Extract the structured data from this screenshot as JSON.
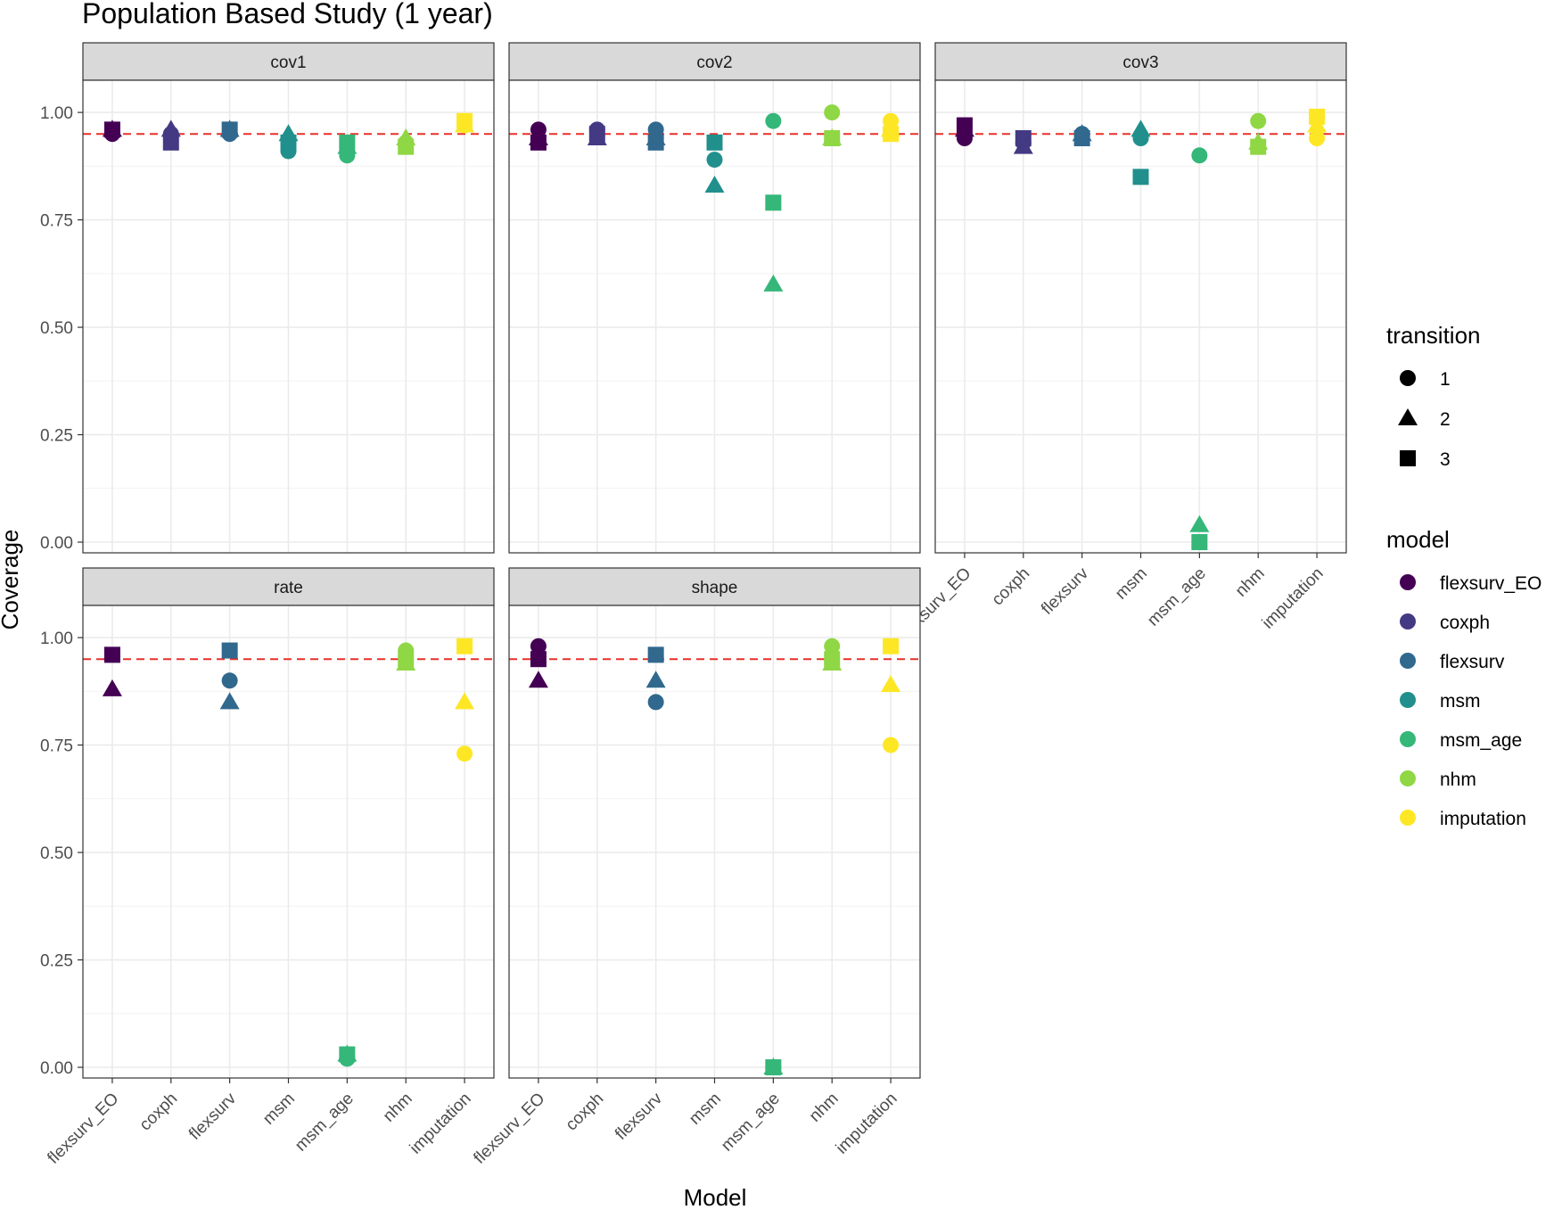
{
  "chart_data": {
    "type": "scatter",
    "title": "Population Based Study (1 year)",
    "xlabel": "Model",
    "ylabel": "Coverage",
    "ylim": [
      0,
      1.05
    ],
    "yticks": [
      "0.00",
      "0.25",
      "0.50",
      "0.75",
      "1.00"
    ],
    "reference_line": 0.95,
    "grid": true,
    "legend_placement": "right",
    "categories": [
      "flexsurv_EO",
      "coxph",
      "flexsurv",
      "msm",
      "msm_age",
      "nhm",
      "imputation"
    ],
    "transition_legend": {
      "title": "transition",
      "entries": [
        {
          "label": "1",
          "shape": "circle"
        },
        {
          "label": "2",
          "shape": "triangle"
        },
        {
          "label": "3",
          "shape": "square"
        }
      ]
    },
    "model_legend": {
      "title": "model",
      "entries": [
        {
          "label": "flexsurv_EO",
          "color": "#440154"
        },
        {
          "label": "coxph",
          "color": "#443A83"
        },
        {
          "label": "flexsurv",
          "color": "#31688E"
        },
        {
          "label": "msm",
          "color": "#21908C"
        },
        {
          "label": "msm_age",
          "color": "#35B779"
        },
        {
          "label": "nhm",
          "color": "#8FD744"
        },
        {
          "label": "imputation",
          "color": "#FDE725"
        }
      ]
    },
    "panels": [
      {
        "label": "cov1",
        "points": [
          {
            "model": "flexsurv_EO",
            "transition": "1",
            "y": 0.95
          },
          {
            "model": "flexsurv_EO",
            "transition": "2",
            "y": 0.96
          },
          {
            "model": "flexsurv_EO",
            "transition": "3",
            "y": 0.96
          },
          {
            "model": "coxph",
            "transition": "1",
            "y": 0.95
          },
          {
            "model": "coxph",
            "transition": "2",
            "y": 0.96
          },
          {
            "model": "coxph",
            "transition": "3",
            "y": 0.93
          },
          {
            "model": "flexsurv",
            "transition": "1",
            "y": 0.95
          },
          {
            "model": "flexsurv",
            "transition": "2",
            "y": 0.96
          },
          {
            "model": "flexsurv",
            "transition": "3",
            "y": 0.96
          },
          {
            "model": "msm",
            "transition": "1",
            "y": 0.91
          },
          {
            "model": "msm",
            "transition": "2",
            "y": 0.95
          },
          {
            "model": "msm",
            "transition": "3",
            "y": 0.93
          },
          {
            "model": "msm_age",
            "transition": "1",
            "y": 0.9
          },
          {
            "model": "msm_age",
            "transition": "2",
            "y": 0.92
          },
          {
            "model": "msm_age",
            "transition": "3",
            "y": 0.93
          },
          {
            "model": "nhm",
            "transition": "1",
            "y": 0.93
          },
          {
            "model": "nhm",
            "transition": "2",
            "y": 0.94
          },
          {
            "model": "nhm",
            "transition": "3",
            "y": 0.92
          },
          {
            "model": "imputation",
            "transition": "1",
            "y": 0.97
          },
          {
            "model": "imputation",
            "transition": "2",
            "y": 0.97
          },
          {
            "model": "imputation",
            "transition": "3",
            "y": 0.98
          }
        ]
      },
      {
        "label": "cov2",
        "points": [
          {
            "model": "flexsurv_EO",
            "transition": "1",
            "y": 0.96
          },
          {
            "model": "flexsurv_EO",
            "transition": "2",
            "y": 0.94
          },
          {
            "model": "flexsurv_EO",
            "transition": "3",
            "y": 0.93
          },
          {
            "model": "coxph",
            "transition": "1",
            "y": 0.96
          },
          {
            "model": "coxph",
            "transition": "2",
            "y": 0.94
          },
          {
            "model": "coxph",
            "transition": "3",
            "y": 0.95
          },
          {
            "model": "flexsurv",
            "transition": "1",
            "y": 0.96
          },
          {
            "model": "flexsurv",
            "transition": "2",
            "y": 0.94
          },
          {
            "model": "flexsurv",
            "transition": "3",
            "y": 0.93
          },
          {
            "model": "msm",
            "transition": "1",
            "y": 0.89
          },
          {
            "model": "msm",
            "transition": "2",
            "y": 0.83
          },
          {
            "model": "msm",
            "transition": "3",
            "y": 0.93
          },
          {
            "model": "msm_age",
            "transition": "1",
            "y": 0.98
          },
          {
            "model": "msm_age",
            "transition": "2",
            "y": 0.6
          },
          {
            "model": "msm_age",
            "transition": "3",
            "y": 0.79
          },
          {
            "model": "nhm",
            "transition": "1",
            "y": 1.0
          },
          {
            "model": "nhm",
            "transition": "2",
            "y": 0.94
          },
          {
            "model": "nhm",
            "transition": "3",
            "y": 0.94
          },
          {
            "model": "imputation",
            "transition": "1",
            "y": 0.98
          },
          {
            "model": "imputation",
            "transition": "2",
            "y": 0.96
          },
          {
            "model": "imputation",
            "transition": "3",
            "y": 0.95
          }
        ]
      },
      {
        "label": "cov3",
        "points": [
          {
            "model": "flexsurv_EO",
            "transition": "1",
            "y": 0.94
          },
          {
            "model": "flexsurv_EO",
            "transition": "2",
            "y": 0.96
          },
          {
            "model": "flexsurv_EO",
            "transition": "3",
            "y": 0.97
          },
          {
            "model": "coxph",
            "transition": "1",
            "y": 0.93
          },
          {
            "model": "coxph",
            "transition": "2",
            "y": 0.92
          },
          {
            "model": "coxph",
            "transition": "3",
            "y": 0.94
          },
          {
            "model": "flexsurv",
            "transition": "1",
            "y": 0.95
          },
          {
            "model": "flexsurv",
            "transition": "2",
            "y": 0.95
          },
          {
            "model": "flexsurv",
            "transition": "3",
            "y": 0.94
          },
          {
            "model": "msm",
            "transition": "1",
            "y": 0.94
          },
          {
            "model": "msm",
            "transition": "2",
            "y": 0.96
          },
          {
            "model": "msm",
            "transition": "3",
            "y": 0.85
          },
          {
            "model": "msm_age",
            "transition": "1",
            "y": 0.9
          },
          {
            "model": "msm_age",
            "transition": "2",
            "y": 0.04
          },
          {
            "model": "msm_age",
            "transition": "3",
            "y": 0.0
          },
          {
            "model": "nhm",
            "transition": "1",
            "y": 0.98
          },
          {
            "model": "nhm",
            "transition": "2",
            "y": 0.93
          },
          {
            "model": "nhm",
            "transition": "3",
            "y": 0.92
          },
          {
            "model": "imputation",
            "transition": "1",
            "y": 0.94
          },
          {
            "model": "imputation",
            "transition": "2",
            "y": 0.97
          },
          {
            "model": "imputation",
            "transition": "3",
            "y": 0.99
          }
        ]
      },
      {
        "label": "rate",
        "points": [
          {
            "model": "flexsurv_EO",
            "transition": "2",
            "y": 0.88
          },
          {
            "model": "flexsurv_EO",
            "transition": "3",
            "y": 0.96
          },
          {
            "model": "flexsurv",
            "transition": "1",
            "y": 0.9
          },
          {
            "model": "flexsurv",
            "transition": "2",
            "y": 0.85
          },
          {
            "model": "flexsurv",
            "transition": "3",
            "y": 0.97
          },
          {
            "model": "msm_age",
            "transition": "1",
            "y": 0.02
          },
          {
            "model": "msm_age",
            "transition": "2",
            "y": 0.03
          },
          {
            "model": "msm_age",
            "transition": "3",
            "y": 0.03
          },
          {
            "model": "nhm",
            "transition": "1",
            "y": 0.97
          },
          {
            "model": "nhm",
            "transition": "2",
            "y": 0.94
          },
          {
            "model": "nhm",
            "transition": "3",
            "y": 0.95
          },
          {
            "model": "imputation",
            "transition": "1",
            "y": 0.73
          },
          {
            "model": "imputation",
            "transition": "2",
            "y": 0.85
          },
          {
            "model": "imputation",
            "transition": "3",
            "y": 0.98
          }
        ]
      },
      {
        "label": "shape",
        "points": [
          {
            "model": "flexsurv_EO",
            "transition": "1",
            "y": 0.98
          },
          {
            "model": "flexsurv_EO",
            "transition": "2",
            "y": 0.9
          },
          {
            "model": "flexsurv_EO",
            "transition": "3",
            "y": 0.95
          },
          {
            "model": "flexsurv",
            "transition": "1",
            "y": 0.85
          },
          {
            "model": "flexsurv",
            "transition": "2",
            "y": 0.9
          },
          {
            "model": "flexsurv",
            "transition": "3",
            "y": 0.96
          },
          {
            "model": "msm_age",
            "transition": "1",
            "y": 0.0
          },
          {
            "model": "msm_age",
            "transition": "2",
            "y": 0.0
          },
          {
            "model": "msm_age",
            "transition": "3",
            "y": 0.0
          },
          {
            "model": "nhm",
            "transition": "1",
            "y": 0.98
          },
          {
            "model": "nhm",
            "transition": "2",
            "y": 0.94
          },
          {
            "model": "nhm",
            "transition": "3",
            "y": 0.95
          },
          {
            "model": "imputation",
            "transition": "1",
            "y": 0.75
          },
          {
            "model": "imputation",
            "transition": "2",
            "y": 0.89
          },
          {
            "model": "imputation",
            "transition": "3",
            "y": 0.98
          }
        ]
      }
    ]
  }
}
